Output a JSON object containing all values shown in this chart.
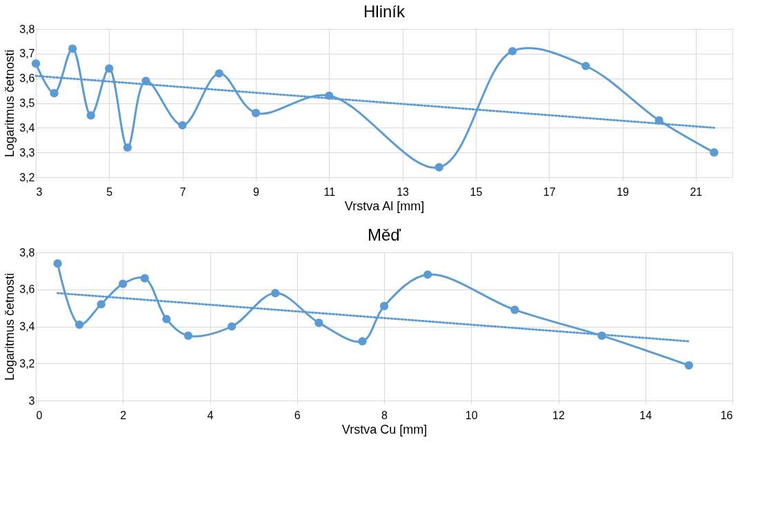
{
  "chart_data": [
    {
      "type": "line",
      "title": "Hliník",
      "xlabel": "Vrstva Al [mm]",
      "ylabel": "Logaritmus četnosti",
      "series": [
        {
          "color": "#5b9bd5",
          "marker": "circle",
          "line_style": "solid",
          "x": [
            3,
            3.5,
            4,
            4.5,
            5,
            5.5,
            6,
            7,
            8,
            9,
            11,
            14,
            16,
            18,
            20,
            21.5
          ],
          "values": [
            3.66,
            3.54,
            3.72,
            3.45,
            3.64,
            3.32,
            3.59,
            3.41,
            3.62,
            3.46,
            3.53,
            3.24,
            3.71,
            3.65,
            3.43,
            3.3
          ]
        },
        {
          "color": "#5b9bd5",
          "marker": "none",
          "line_style": "dotted",
          "x": [
            3,
            21.5
          ],
          "values": [
            3.61,
            3.4
          ]
        }
      ],
      "xlim": [
        3,
        22
      ],
      "xticks": [
        3,
        5,
        7,
        9,
        11,
        13,
        15,
        17,
        19,
        21
      ],
      "ylim": [
        3.2,
        3.8
      ],
      "yticks": [
        {
          "value": 3.2,
          "label": "3,2"
        },
        {
          "value": 3.3,
          "label": "3,3"
        },
        {
          "value": 3.4,
          "label": "3,4"
        },
        {
          "value": 3.5,
          "label": "3,5"
        },
        {
          "value": 3.6,
          "label": "3,6"
        },
        {
          "value": 3.7,
          "label": "3,7"
        },
        {
          "value": 3.8,
          "label": "3,8"
        }
      ],
      "grid": true
    },
    {
      "type": "line",
      "title": "Měď",
      "xlabel": "Vrstva Cu [mm]",
      "ylabel": "Logaritmus četnosti",
      "series": [
        {
          "color": "#5b9bd5",
          "marker": "circle",
          "line_style": "solid",
          "x": [
            0.5,
            1,
            1.5,
            2,
            2.5,
            3,
            3.5,
            4.5,
            5.5,
            6.5,
            7.5,
            8,
            9,
            11,
            13,
            15
          ],
          "values": [
            3.74,
            3.41,
            3.52,
            3.63,
            3.66,
            3.44,
            3.35,
            3.4,
            3.58,
            3.42,
            3.32,
            3.51,
            3.68,
            3.49,
            3.35,
            3.19
          ]
        },
        {
          "color": "#5b9bd5",
          "marker": "none",
          "line_style": "dotted",
          "x": [
            0.5,
            15
          ],
          "values": [
            3.58,
            3.32
          ]
        }
      ],
      "xlim": [
        0,
        16
      ],
      "xticks": [
        0,
        2,
        4,
        6,
        8,
        10,
        12,
        14,
        16
      ],
      "ylim": [
        3,
        3.8
      ],
      "yticks": [
        3,
        {
          "value": 3.2,
          "label": "3,2"
        },
        {
          "value": 3.4,
          "label": "3,4"
        },
        {
          "value": 3.6,
          "label": "3,6"
        },
        {
          "value": 3.8,
          "label": "3,8"
        }
      ],
      "grid": true
    }
  ]
}
